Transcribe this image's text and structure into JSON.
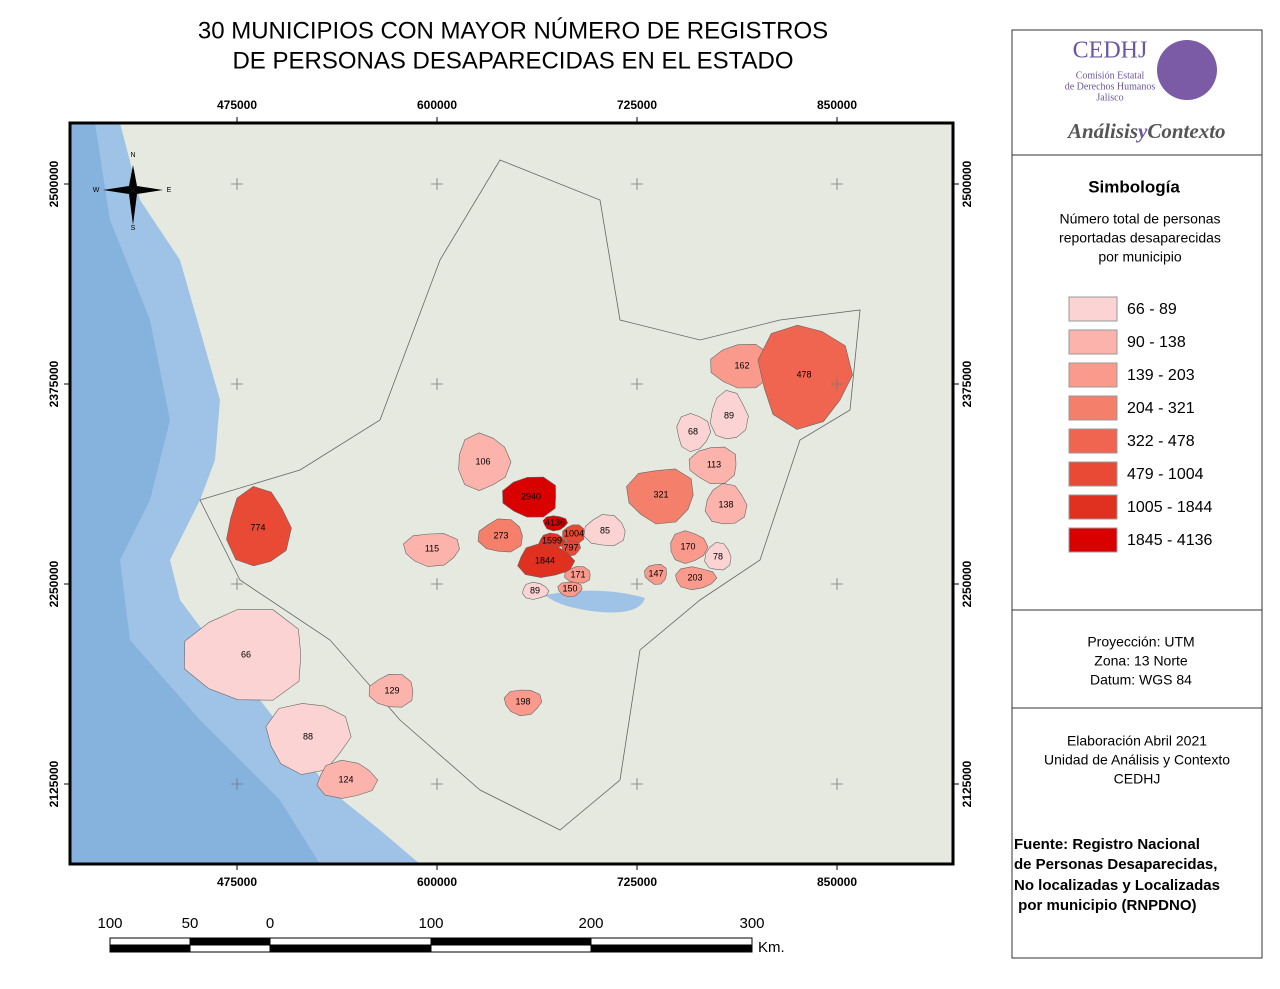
{
  "header": {
    "title": [
      "30 MUNICIPIOS CON MAYOR NÚMERO DE REGISTROS",
      "DE PERSONAS DESAPARECIDAS EN EL ESTADO"
    ]
  },
  "map": {
    "xlim": [
      370625,
      922500
    ],
    "ylim": [
      2075000,
      2538125
    ],
    "xticks": [
      475000,
      600000,
      725000,
      850000
    ],
    "yticks": [
      2125000,
      2250000,
      2375000,
      2500000
    ],
    "compass": [
      "N",
      "W",
      "E",
      "S"
    ],
    "municipalities": [
      2940,
      4136,
      1599,
      1004,
      797,
      1844,
      171,
      150,
      89,
      273,
      115,
      106,
      85,
      321,
      170,
      78,
      147,
      203,
      138,
      113,
      68,
      89,
      162,
      478,
      774,
      66,
      88,
      124,
      129,
      198
    ]
  },
  "scale_bar": {
    "labels": [
      100,
      50,
      0,
      100,
      200,
      300
    ],
    "unit": "Km."
  },
  "panel": {
    "logo": {
      "name": "CEDHJ",
      "lines": [
        "Comisión Estatal",
        "de Derechos Humanos",
        "Jalisco"
      ],
      "brand": [
        "Análisis",
        "y",
        "Contexto"
      ]
    },
    "legend": {
      "title": "Simbología",
      "subtitle": [
        "Número total de personas",
        "reportadas desaparecidas",
        "por municipio"
      ],
      "classes": [
        {
          "label": "66 - 89",
          "color": "#fcd3d3"
        },
        {
          "label": "90 - 138",
          "color": "#fbb3ac"
        },
        {
          "label": "139 - 203",
          "color": "#f99a8c"
        },
        {
          "label": "204 - 321",
          "color": "#f47f6a"
        },
        {
          "label": "322 - 478",
          "color": "#ef6550"
        },
        {
          "label": "479 - 1004",
          "color": "#e84a36"
        },
        {
          "label": "1005 - 1844",
          "color": "#e0301f"
        },
        {
          "label": "1845 - 4136",
          "color": "#d90000"
        }
      ]
    },
    "projection": [
      "Proyección: UTM",
      "Zona: 13 Norte",
      "Datum: WGS 84"
    ],
    "credits": [
      "Elaboración Abril 2021",
      "Unidad de Análisis y Contexto",
      "CEDHJ"
    ],
    "source": [
      "Fuente: Registro Nacional",
      "de Personas Desaparecidas,",
      "No localizadas y Localizadas",
      " por municipio (RNPDNO)"
    ]
  }
}
